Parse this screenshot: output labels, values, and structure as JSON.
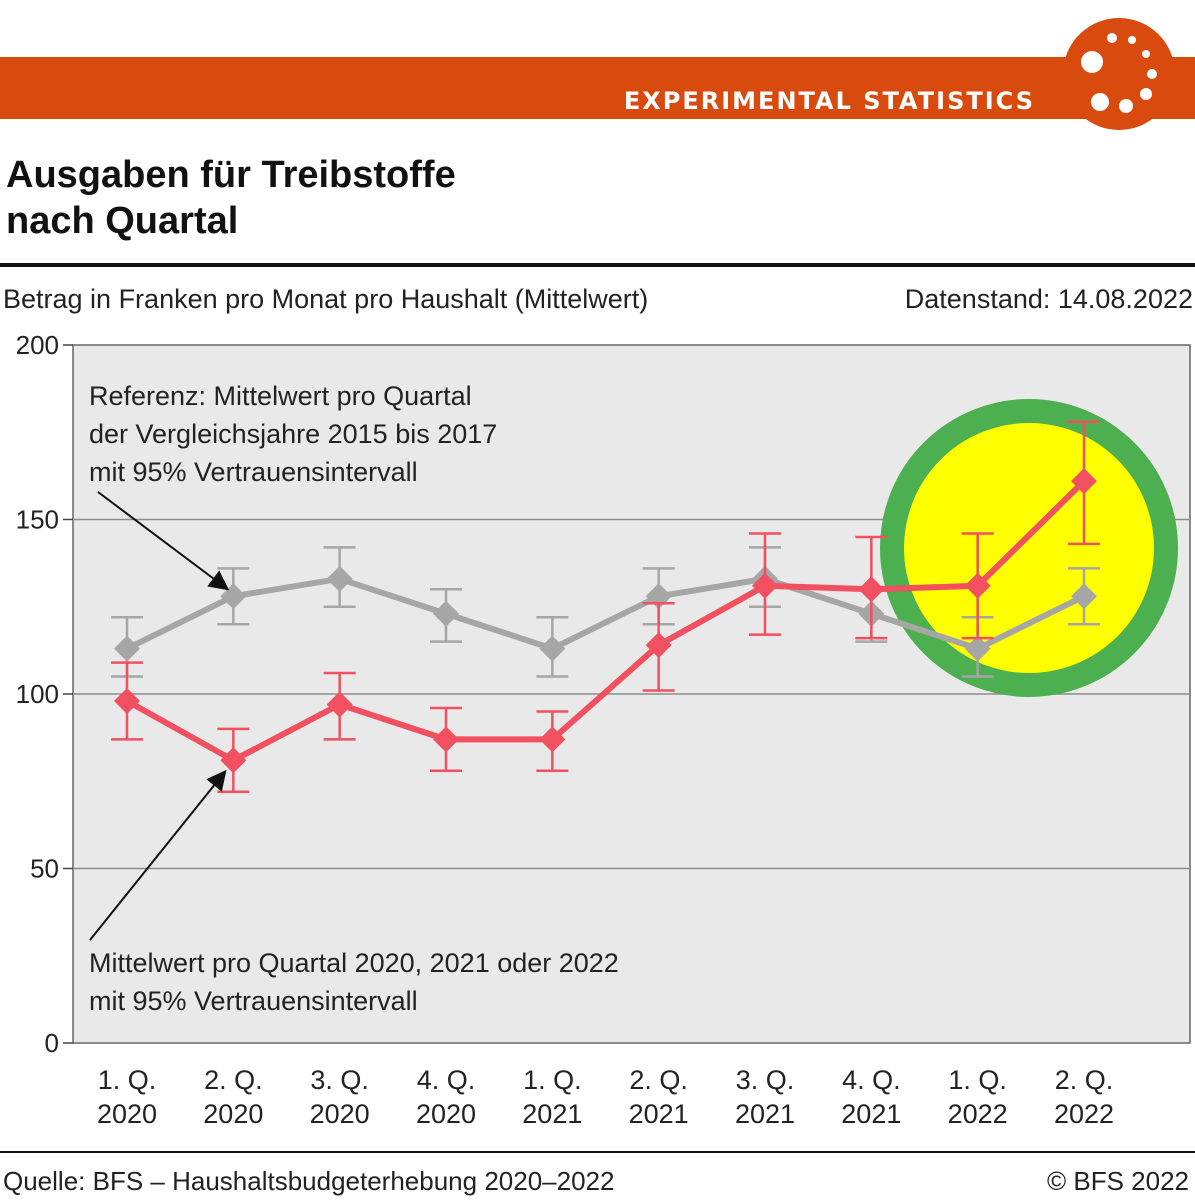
{
  "banner": {
    "label": "EXPERIMENTAL STATISTICS",
    "color": "#d84a0e"
  },
  "title_line1": "Ausgaben für Treibstoffe",
  "title_line2": "nach Quartal",
  "subtitle": "Betrag in Franken pro Monat pro Haushalt (Mittelwert)",
  "data_stand": "Datenstand: 14.08.2022",
  "footer": {
    "source": "Quelle: BFS – Haushaltsbudgeterhebung 2020–2022",
    "copyright": "© BFS 2022"
  },
  "chart_data": {
    "type": "line",
    "categories": [
      [
        "1. Q.",
        "2020"
      ],
      [
        "2. Q.",
        "2020"
      ],
      [
        "3. Q.",
        "2020"
      ],
      [
        "4. Q.",
        "2020"
      ],
      [
        "1. Q.",
        "2021"
      ],
      [
        "2. Q.",
        "2021"
      ],
      [
        "3. Q.",
        "2021"
      ],
      [
        "4. Q.",
        "2021"
      ],
      [
        "1. Q.",
        "2022"
      ],
      [
        "2. Q.",
        "2022"
      ]
    ],
    "ylim": [
      0,
      200
    ],
    "yticks": [
      0,
      50,
      100,
      150,
      200
    ],
    "grid": true,
    "series": [
      {
        "color": "#a6a6a6",
        "values": [
          113,
          128,
          133,
          123,
          113,
          128,
          133,
          123,
          113,
          128
        ],
        "lower": [
          105,
          120,
          125,
          115,
          105,
          120,
          125,
          115,
          105,
          120
        ],
        "upper": [
          122,
          136,
          142,
          130,
          122,
          136,
          142,
          130,
          122,
          136
        ]
      },
      {
        "color": "#f0505f",
        "values": [
          98,
          81,
          97,
          87,
          87,
          114,
          131,
          130,
          131,
          161
        ],
        "lower": [
          87,
          72,
          87,
          78,
          78,
          101,
          117,
          116,
          116,
          143
        ],
        "upper": [
          109,
          90,
          106,
          96,
          95,
          126,
          146,
          145,
          146,
          178
        ]
      }
    ],
    "annotations": [
      {
        "lines": [
          "Referenz: Mittelwert pro Quartal",
          "der Vergleichsjahre 2015 bis 2017",
          "mit 95% Vertrauensintervall"
        ]
      },
      {
        "lines": [
          "Mittelwert pro Quartal 2020, 2021 oder 2022",
          "mit 95% Vertrauensintervall"
        ]
      }
    ],
    "highlight": {
      "fill": "#ffff00",
      "stroke": "#4caf50"
    }
  }
}
